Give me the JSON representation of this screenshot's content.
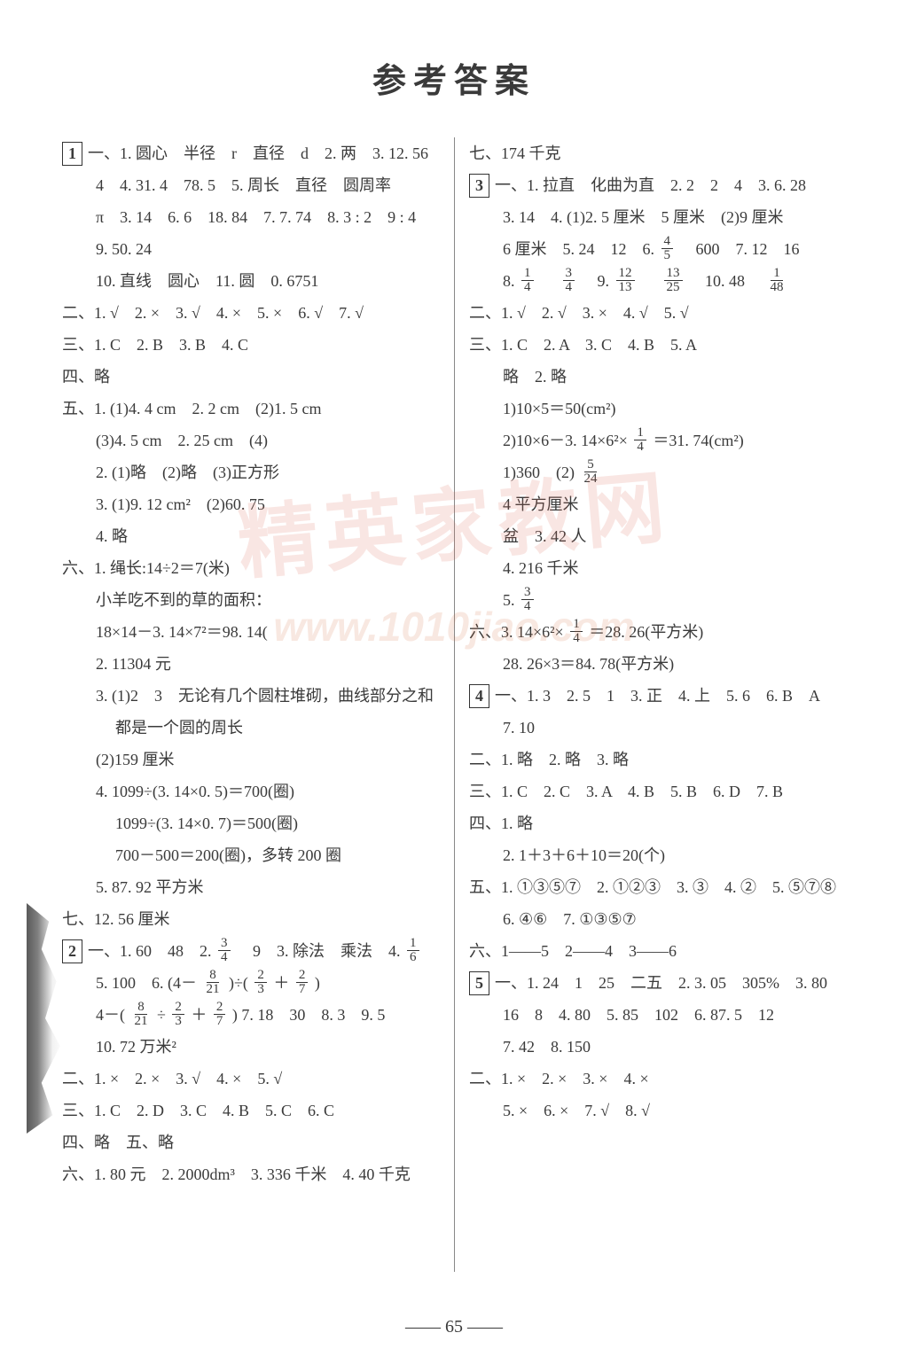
{
  "title": "参考答案",
  "page_number": "65",
  "watermark_main": "精英家教网",
  "watermark_url": "www.1010jiao.com",
  "left": {
    "s1_box": "1",
    "l1": "一、1. 圆心　半径　r　直径　d　2. 两　3. 12. 56",
    "l2": "4　4. 31. 4　78. 5　5. 周长　直径　圆周率",
    "l3": "π　3. 14　6. 6　18. 84　7. 7. 74　8. 3 : 2　9 : 4",
    "l4": "9. 50. 24",
    "l5": "10. 直线　圆心　11. 圆　0. 6751",
    "l6": "二、1. √　2. ×　3. √　4. ×　5. ×　6. √　7. √",
    "l7": "三、1. C　2. B　3. B　4. C",
    "l8": "四、略",
    "l9": "五、1. (1)4. 4 cm　2. 2 cm　(2)1. 5 cm",
    "l10": "(3)4. 5 cm　2. 25 cm　(4)",
    "l11": "2. (1)略　(2)略　(3)正方形",
    "l12": "3. (1)9. 12 cm²　(2)60. 75",
    "l13": "4. 略",
    "l14": "六、1. 绳长:14÷2＝7(米)",
    "l15": "小羊吃不到的草的面积：",
    "l16": "18×14－3. 14×7²＝98. 14(",
    "l17": "2. 11304 元",
    "l18": "3. (1)2　3　无论有几个圆柱堆砌，曲线部分之和",
    "l19": "都是一个圆的周长",
    "l20": "(2)159 厘米",
    "l21": "4. 1099÷(3. 14×0. 5)＝700(圈)",
    "l22": "1099÷(3. 14×0. 7)＝500(圈)",
    "l23": "700－500＝200(圈)，多转 200 圈",
    "l24": "5. 87. 92 平方米",
    "l25": "七、12. 56 厘米",
    "s2_box": "2",
    "l26a": "一、1. 60　48　2.",
    "l26b": "　9　3. 除法　乘法　4.",
    "l27a": "5. 100　6.",
    "exprA_pre": "(4－",
    "exprA_mid": ")÷(",
    "exprA_plus": "＋",
    "exprA_post": ")",
    "l28a": "4－(",
    "l28b": "÷",
    "l28c": "＋",
    "l28d": ")  7. 18　30　8. 3　9. 5",
    "l29": "10. 72 万米²",
    "l30": "二、1. ×　2. ×　3. √　4. ×　5. √",
    "l31": "三、1. C　2. D　3. C　4. B　5. C　6. C",
    "l32": "四、略　五、略",
    "l33": "六、1. 80 元　2. 2000dm³　3. 336 千米　4. 40 千克"
  },
  "right": {
    "r1": "七、174 千克",
    "s3_box": "3",
    "r2": "一、1. 拉直　化曲为直　2. 2　2　4　3. 6. 28",
    "r3": "3. 14　4. (1)2. 5 厘米　5 厘米　(2)9 厘米",
    "r4a": "6 厘米　5. 24　12　6.",
    "r4b": "　600　7. 12　16",
    "r5a": "8.",
    "r5b": "　",
    "r5c": "　9.",
    "r5d": "　",
    "r5e": "　10. 48　",
    "r6": "二、1. √　2. √　3. ×　4. √　5. √",
    "r7": "三、1. C　2. A　3. C　4. B　5. A",
    "r8": "略　2. 略",
    "r9": "1)10×5＝50(cm²)",
    "r10a": "2)10×6－3. 14×6²×",
    "r10b": "＝31. 74(cm²)",
    "r11a": "1)360　(2)",
    "r12": "4 平方厘米",
    "r13": "盆　3. 42 人",
    "r14": "4. 216 千米",
    "r15a": "5.",
    "r16a": "六、3. 14×6²×",
    "r16b": "＝28. 26(平方米)",
    "r17": "28. 26×3＝84. 78(平方米)",
    "s4_box": "4",
    "r18": "一、1. 3　2. 5　1　3. 正　4. 上　5. 6　6. B　A",
    "r19": "7. 10",
    "r20": "二、1. 略　2. 略　3. 略",
    "r21": "三、1. C　2. C　3. A　4. B　5. B　6. D　7. B",
    "r22": "四、1. 略",
    "r23": "2. 1＋3＋6＋10＝20(个)",
    "r24": "五、1. ①③⑤⑦　2. ①②③　3. ③　4. ②　5. ⑤⑦⑧",
    "r25": "6. ④⑥　7. ①③⑤⑦",
    "r26": "六、1——5　2——4　3——6",
    "s5_box": "5",
    "r27": "一、1. 24　1　25　二五　2. 3. 05　305%　3. 80",
    "r28": "16　8　4. 80　5. 85　102　6. 87. 5　12",
    "r29": "7. 42　8. 150",
    "r30": "二、1. ×　2. ×　3. ×　4. ×",
    "r31": "5. ×　6. ×　7. √　8. √"
  },
  "fractions": {
    "f3_4": {
      "n": "3",
      "d": "4"
    },
    "f1_6": {
      "n": "1",
      "d": "6"
    },
    "f8_21": {
      "n": "8",
      "d": "21"
    },
    "f2_3": {
      "n": "2",
      "d": "3"
    },
    "f2_7": {
      "n": "2",
      "d": "7"
    },
    "f4_5": {
      "n": "4",
      "d": "5"
    },
    "f1_4": {
      "n": "1",
      "d": "4"
    },
    "f12_13": {
      "n": "12",
      "d": "13"
    },
    "f13_25": {
      "n": "13",
      "d": "25"
    },
    "f1_48": {
      "n": "1",
      "d": "48"
    },
    "f5_24": {
      "n": "5",
      "d": "24"
    }
  }
}
